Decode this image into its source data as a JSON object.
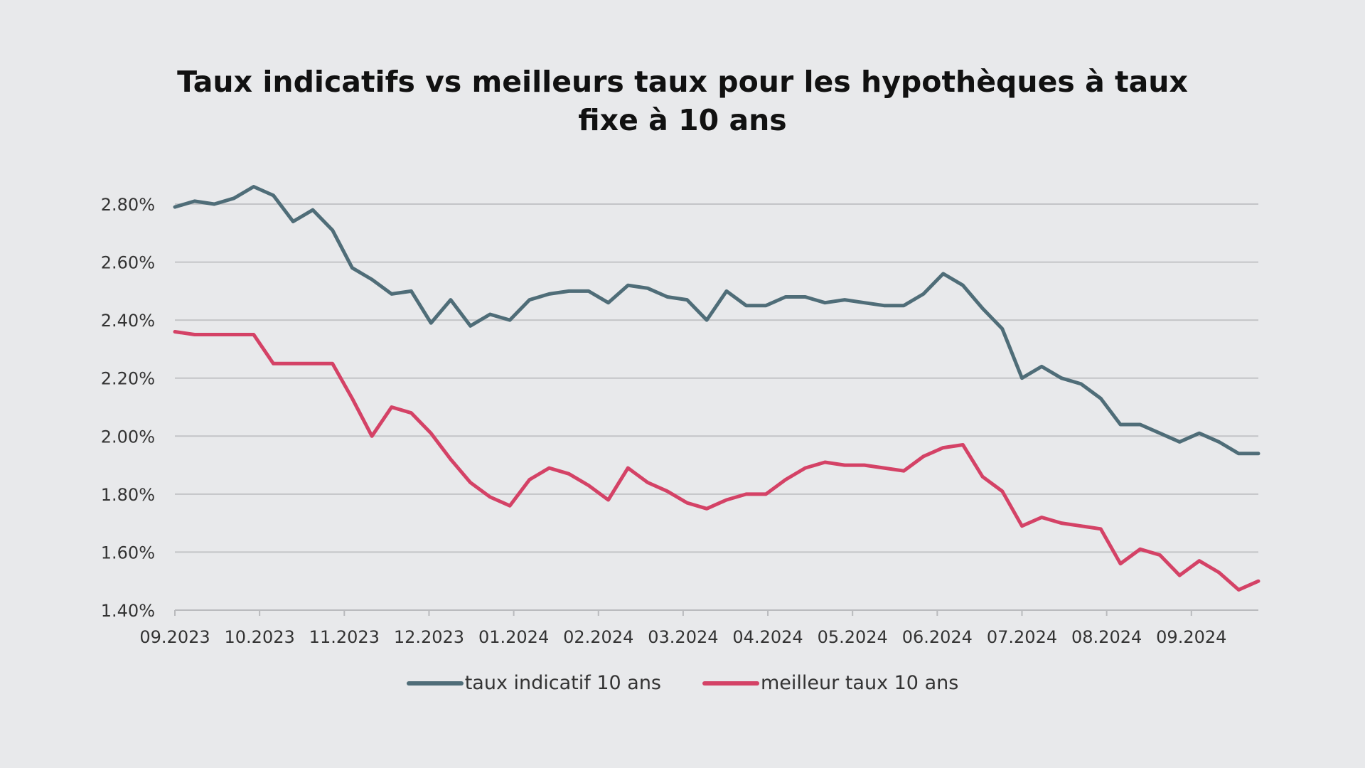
{
  "chart_data": {
    "type": "line",
    "title": "Taux indicatifs vs meilleurs taux pour les hypothèques à taux fixe à 10 ans",
    "title_lines": [
      "Taux indicatifs vs meilleurs taux pour les hypothèques à taux",
      "fixe à 10 ans"
    ],
    "xlabel": "",
    "ylabel": "",
    "x_tick_labels": [
      "09.2023",
      "10.2023",
      "11.2023",
      "12.2023",
      "01.2024",
      "02.2024",
      "03.2024",
      "04.2024",
      "05.2024",
      "06.2024",
      "07.2024",
      "08.2024",
      "09.2024"
    ],
    "y_tick_labels": [
      "1.40%",
      "1.60%",
      "1.80%",
      "2.00%",
      "2.20%",
      "2.40%",
      "2.60%",
      "2.80%"
    ],
    "y_ticks": [
      1.4,
      1.6,
      1.8,
      2.0,
      2.2,
      2.4,
      2.6,
      2.8
    ],
    "ylim": [
      1.4,
      2.8
    ],
    "grid": "horizontal",
    "legend_position": "bottom",
    "series": [
      {
        "name": "taux indicatif 10 ans",
        "color": "#4f6d78",
        "values": [
          2.79,
          2.81,
          2.8,
          2.82,
          2.86,
          2.83,
          2.74,
          2.78,
          2.71,
          2.58,
          2.54,
          2.49,
          2.5,
          2.39,
          2.47,
          2.38,
          2.42,
          2.4,
          2.47,
          2.49,
          2.5,
          2.5,
          2.46,
          2.52,
          2.51,
          2.48,
          2.47,
          2.4,
          2.5,
          2.45,
          2.45,
          2.48,
          2.48,
          2.46,
          2.47,
          2.46,
          2.45,
          2.45,
          2.49,
          2.56,
          2.52,
          2.44,
          2.37,
          2.2,
          2.24,
          2.2,
          2.18,
          2.13,
          2.04,
          2.04,
          2.01,
          1.98,
          2.01,
          1.98,
          1.94,
          1.94
        ]
      },
      {
        "name": "meilleur taux 10 ans",
        "color": "#d44266",
        "values": [
          2.36,
          2.35,
          2.35,
          2.35,
          2.35,
          2.25,
          2.25,
          2.25,
          2.25,
          2.13,
          2.0,
          2.1,
          2.08,
          2.01,
          1.92,
          1.84,
          1.79,
          1.76,
          1.85,
          1.89,
          1.87,
          1.83,
          1.78,
          1.89,
          1.84,
          1.81,
          1.77,
          1.75,
          1.78,
          1.8,
          1.8,
          1.85,
          1.89,
          1.91,
          1.9,
          1.9,
          1.89,
          1.88,
          1.93,
          1.96,
          1.97,
          1.86,
          1.81,
          1.69,
          1.72,
          1.7,
          1.69,
          1.68,
          1.56,
          1.61,
          1.59,
          1.52,
          1.57,
          1.53,
          1.47,
          1.5
        ]
      }
    ]
  }
}
